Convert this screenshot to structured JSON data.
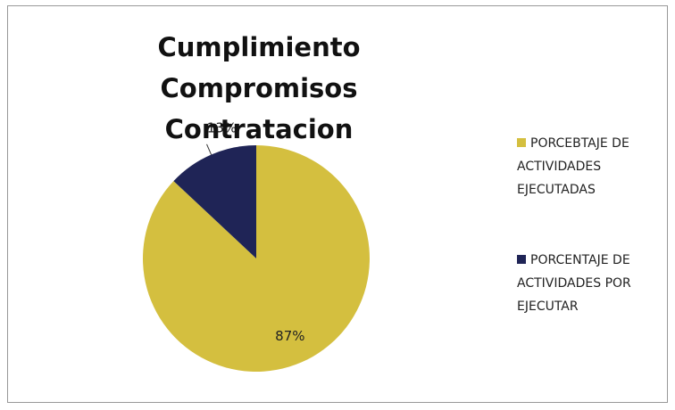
{
  "chart_data": {
    "type": "pie",
    "title": "Cumplimiento Compromisos Contratacion",
    "categories": [
      "PORCEBTAJE DE ACTIVIDADES EJECUTADAS",
      "PORCENTAJE DE ACTIVIDADES POR EJECUTAR"
    ],
    "values": [
      87,
      13
    ],
    "value_labels": [
      "87%",
      "13%"
    ],
    "colors": [
      "#d4bf3f",
      "#1f2456"
    ],
    "legend": "right"
  }
}
